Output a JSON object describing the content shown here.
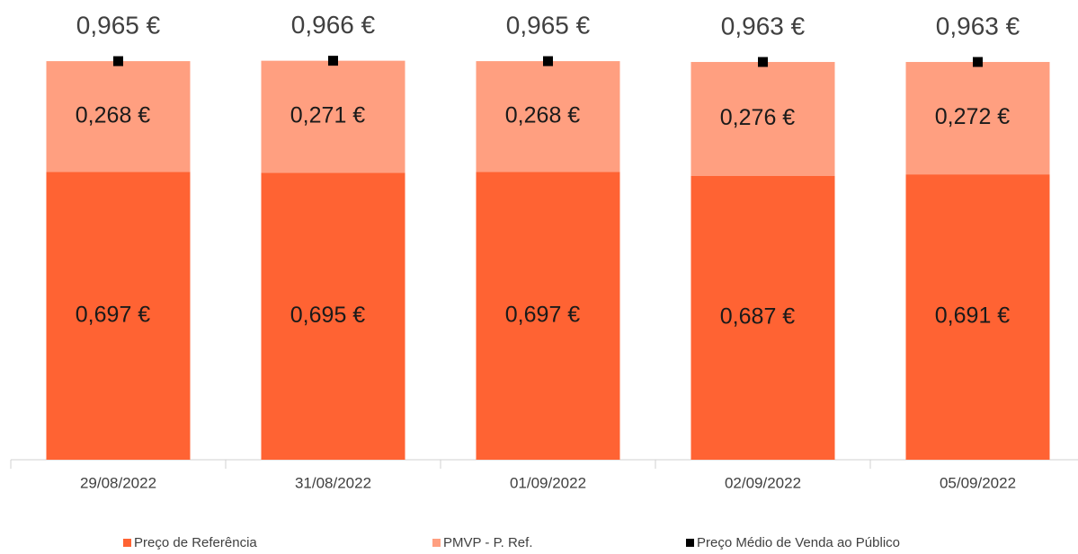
{
  "chart_data": {
    "type": "bar",
    "stacked": true,
    "categories": [
      "29/08/2022",
      "31/08/2022",
      "01/09/2022",
      "02/09/2022",
      "05/09/2022"
    ],
    "series": [
      {
        "name": "Preço de Referência",
        "color": "#ff6333",
        "values": [
          0.697,
          0.695,
          0.697,
          0.687,
          0.691
        ],
        "value_labels": [
          "0,697 €",
          "0,695 €",
          "0,697 €",
          "0,687 €",
          "0,691 €"
        ]
      },
      {
        "name": "PMVP - P. Ref.",
        "color": "#ff9f80",
        "values": [
          0.268,
          0.271,
          0.268,
          0.276,
          0.272
        ],
        "value_labels": [
          "0,268 €",
          "0,271 €",
          "0,268 €",
          "0,276 €",
          "0,272 €"
        ]
      },
      {
        "name": "Preço Médio de Venda ao Público",
        "color": "#000000",
        "type": "scatter",
        "values": [
          0.965,
          0.966,
          0.965,
          0.963,
          0.963
        ],
        "value_labels": [
          "0,965 €",
          "0,966 €",
          "0,965 €",
          "0,963 €",
          "0,963 €"
        ]
      }
    ],
    "ylim": [
      0,
      1
    ]
  }
}
